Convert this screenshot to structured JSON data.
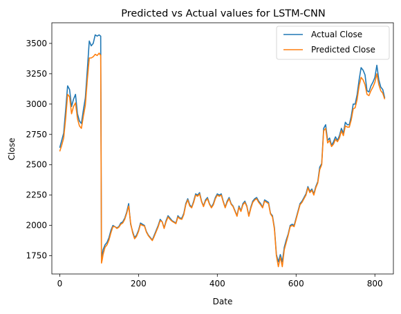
{
  "chart_data": {
    "type": "line",
    "title": "Predicted vs Actual values for LSTM-CNN",
    "xlabel": "Date",
    "ylabel": "Close",
    "xlim": [
      -20,
      847
    ],
    "ylim": [
      1600,
      3670
    ],
    "xticks": [
      0,
      200,
      400,
      600,
      800
    ],
    "yticks": [
      1750,
      2000,
      2250,
      2500,
      2750,
      3000,
      3250,
      3500
    ],
    "grid": false,
    "legend_position": "top-right",
    "series": [
      {
        "name": "Actual Close",
        "color": "#1f77b4",
        "x": [
          0,
          5,
          10,
          15,
          20,
          25,
          30,
          35,
          40,
          45,
          50,
          55,
          60,
          65,
          70,
          75,
          80,
          85,
          90,
          95,
          100,
          104,
          106,
          108,
          110,
          115,
          120,
          125,
          130,
          135,
          140,
          145,
          150,
          155,
          160,
          165,
          170,
          175,
          180,
          185,
          190,
          195,
          200,
          205,
          210,
          215,
          220,
          225,
          230,
          235,
          240,
          245,
          250,
          255,
          260,
          265,
          270,
          275,
          280,
          285,
          290,
          295,
          300,
          305,
          310,
          315,
          320,
          325,
          330,
          335,
          340,
          345,
          350,
          355,
          360,
          365,
          370,
          375,
          380,
          385,
          390,
          395,
          400,
          405,
          410,
          415,
          420,
          425,
          430,
          435,
          440,
          445,
          450,
          455,
          460,
          465,
          470,
          475,
          480,
          485,
          490,
          495,
          500,
          505,
          510,
          515,
          520,
          525,
          530,
          535,
          540,
          545,
          550,
          555,
          560,
          565,
          570,
          575,
          580,
          585,
          590,
          595,
          600,
          605,
          610,
          615,
          620,
          625,
          630,
          635,
          640,
          645,
          650,
          655,
          660,
          665,
          670,
          675,
          680,
          685,
          690,
          695,
          700,
          705,
          710,
          715,
          720,
          725,
          730,
          735,
          740,
          745,
          750,
          755,
          760,
          765,
          770,
          775,
          780,
          785,
          790,
          795,
          800,
          805,
          810,
          815,
          820,
          825
        ],
        "y": [
          2640,
          2700,
          2760,
          2950,
          3150,
          3120,
          2980,
          3040,
          3080,
          2920,
          2860,
          2840,
          2950,
          3050,
          3280,
          3520,
          3480,
          3500,
          3570,
          3560,
          3570,
          3560,
          1730,
          1760,
          1800,
          1840,
          1860,
          1900,
          1960,
          2000,
          1990,
          1980,
          1990,
          2020,
          2030,
          2060,
          2110,
          2180,
          2010,
          1950,
          1900,
          1920,
          1960,
          2020,
          2010,
          2000,
          1950,
          1920,
          1900,
          1880,
          1920,
          1960,
          2000,
          2050,
          2030,
          1980,
          2040,
          2080,
          2060,
          2040,
          2030,
          2020,
          2080,
          2060,
          2060,
          2100,
          2180,
          2220,
          2170,
          2150,
          2200,
          2260,
          2250,
          2270,
          2200,
          2160,
          2210,
          2230,
          2180,
          2150,
          2180,
          2230,
          2260,
          2250,
          2260,
          2200,
          2150,
          2200,
          2230,
          2180,
          2160,
          2120,
          2080,
          2160,
          2120,
          2180,
          2200,
          2160,
          2080,
          2150,
          2200,
          2220,
          2230,
          2200,
          2180,
          2150,
          2210,
          2200,
          2190,
          2100,
          2080,
          1980,
          1760,
          1700,
          1760,
          1700,
          1820,
          1880,
          1930,
          2000,
          2010,
          2000,
          2060,
          2120,
          2180,
          2200,
          2230,
          2260,
          2320,
          2280,
          2300,
          2260,
          2320,
          2360,
          2480,
          2510,
          2800,
          2830,
          2700,
          2720,
          2660,
          2690,
          2730,
          2700,
          2740,
          2800,
          2760,
          2850,
          2830,
          2830,
          2900,
          3000,
          3000,
          3080,
          3200,
          3300,
          3280,
          3240,
          3110,
          3100,
          3150,
          3180,
          3220,
          3320,
          3200,
          3140,
          3120,
          3050
        ]
      },
      {
        "name": "Predicted Close",
        "color": "#ff7f0e",
        "x": [
          0,
          5,
          10,
          15,
          20,
          25,
          30,
          35,
          40,
          45,
          50,
          55,
          60,
          65,
          70,
          75,
          80,
          85,
          90,
          95,
          100,
          104,
          106,
          108,
          110,
          115,
          120,
          125,
          130,
          135,
          140,
          145,
          150,
          155,
          160,
          165,
          170,
          175,
          180,
          185,
          190,
          195,
          200,
          205,
          210,
          215,
          220,
          225,
          230,
          235,
          240,
          245,
          250,
          255,
          260,
          265,
          270,
          275,
          280,
          285,
          290,
          295,
          300,
          305,
          310,
          315,
          320,
          325,
          330,
          335,
          340,
          345,
          350,
          355,
          360,
          365,
          370,
          375,
          380,
          385,
          390,
          395,
          400,
          405,
          410,
          415,
          420,
          425,
          430,
          435,
          440,
          445,
          450,
          455,
          460,
          465,
          470,
          475,
          480,
          485,
          490,
          495,
          500,
          505,
          510,
          515,
          520,
          525,
          530,
          535,
          540,
          545,
          550,
          555,
          560,
          565,
          570,
          575,
          580,
          585,
          590,
          595,
          600,
          605,
          610,
          615,
          620,
          625,
          630,
          635,
          640,
          645,
          650,
          655,
          660,
          665,
          670,
          675,
          680,
          685,
          690,
          695,
          700,
          705,
          710,
          715,
          720,
          725,
          730,
          735,
          740,
          745,
          750,
          755,
          760,
          765,
          770,
          775,
          780,
          785,
          790,
          795,
          800,
          805,
          810,
          815,
          820,
          825
        ],
        "y": [
          2610,
          2660,
          2720,
          2880,
          3080,
          3060,
          2920,
          2980,
          3010,
          2880,
          2820,
          2800,
          2900,
          2990,
          3200,
          3380,
          3380,
          3390,
          3410,
          3400,
          3420,
          3400,
          1690,
          1720,
          1760,
          1820,
          1840,
          1880,
          1940,
          1990,
          1990,
          1975,
          1985,
          2010,
          2020,
          2050,
          2100,
          2160,
          2020,
          1940,
          1890,
          1910,
          1950,
          2010,
          2000,
          1995,
          1945,
          1915,
          1895,
          1875,
          1910,
          1950,
          1990,
          2040,
          2030,
          1975,
          2030,
          2070,
          2050,
          2035,
          2025,
          2015,
          2070,
          2055,
          2050,
          2090,
          2170,
          2210,
          2160,
          2145,
          2190,
          2250,
          2240,
          2260,
          2195,
          2155,
          2200,
          2220,
          2175,
          2145,
          2170,
          2220,
          2250,
          2240,
          2250,
          2195,
          2145,
          2190,
          2220,
          2175,
          2155,
          2115,
          2075,
          2150,
          2115,
          2170,
          2190,
          2155,
          2075,
          2140,
          2190,
          2210,
          2220,
          2190,
          2170,
          2145,
          2200,
          2190,
          2180,
          2095,
          2070,
          1970,
          1750,
          1660,
          1740,
          1660,
          1800,
          1860,
          1920,
          1990,
          2000,
          1990,
          2050,
          2110,
          2170,
          2190,
          2220,
          2250,
          2310,
          2270,
          2290,
          2250,
          2310,
          2350,
          2460,
          2500,
          2780,
          2800,
          2680,
          2700,
          2650,
          2670,
          2710,
          2690,
          2720,
          2780,
          2740,
          2820,
          2810,
          2810,
          2870,
          2960,
          2970,
          3040,
          3150,
          3220,
          3200,
          3160,
          3080,
          3070,
          3110,
          3140,
          3180,
          3250,
          3160,
          3110,
          3090,
          3040
        ]
      }
    ]
  }
}
